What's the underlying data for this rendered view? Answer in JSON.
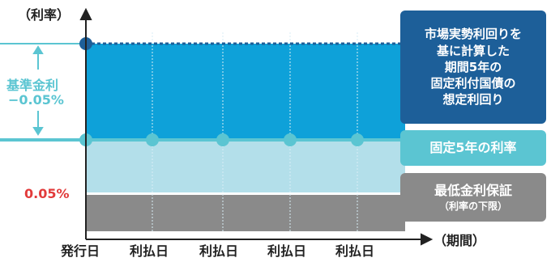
{
  "axis": {
    "y_label": "（利率）",
    "x_label": "（期間）",
    "x_ticks": [
      "発行日",
      "利払日",
      "利払日",
      "利払日",
      "利払日"
    ]
  },
  "left_labels": {
    "spread_line1": "基準金利",
    "spread_line2": "−0.05%",
    "floor_rate": "0.05%"
  },
  "legend": {
    "market_box": [
      "市場実勢利回りを",
      "基に計算した",
      "期間5年の",
      "固定利付国債の",
      "想定利回り"
    ],
    "fixed_box": "固定5年の利率",
    "floor_box_main": "最低金利保証",
    "floor_box_sub": "（利率の下限）"
  },
  "colors": {
    "market_band": "#0ea1d9",
    "fixed_band": "#b3dfea",
    "floor_band": "#8a8a8a",
    "market_box": "#1d5f99",
    "fixed_box": "#5bc5d2",
    "floor_box": "#8a8a8a",
    "teal_line": "#5bc5d2",
    "dark_dot": "#1d5f99",
    "floor_text": "#e23b3b"
  }
}
